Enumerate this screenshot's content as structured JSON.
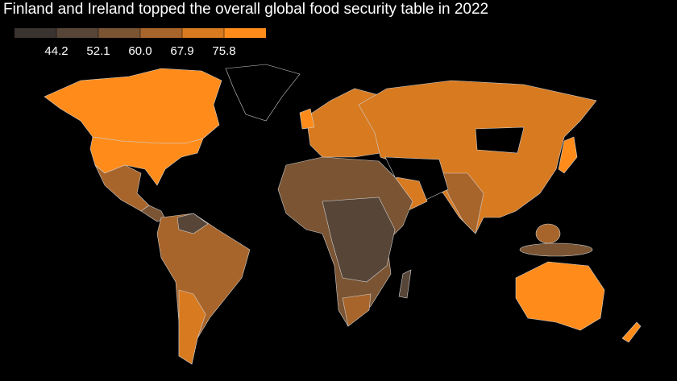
{
  "title": "Finland and Ireland topped the overall global food security table in 2022",
  "legend": {
    "colors": [
      "#3b3330",
      "#574538",
      "#7a5433",
      "#a8652b",
      "#d87a1f",
      "#ff8c1a"
    ],
    "ticks": [
      44.2,
      52.1,
      {
        "value": 60,
        "label": "60.0"
      },
      67.9,
      75.8
    ]
  }
}
